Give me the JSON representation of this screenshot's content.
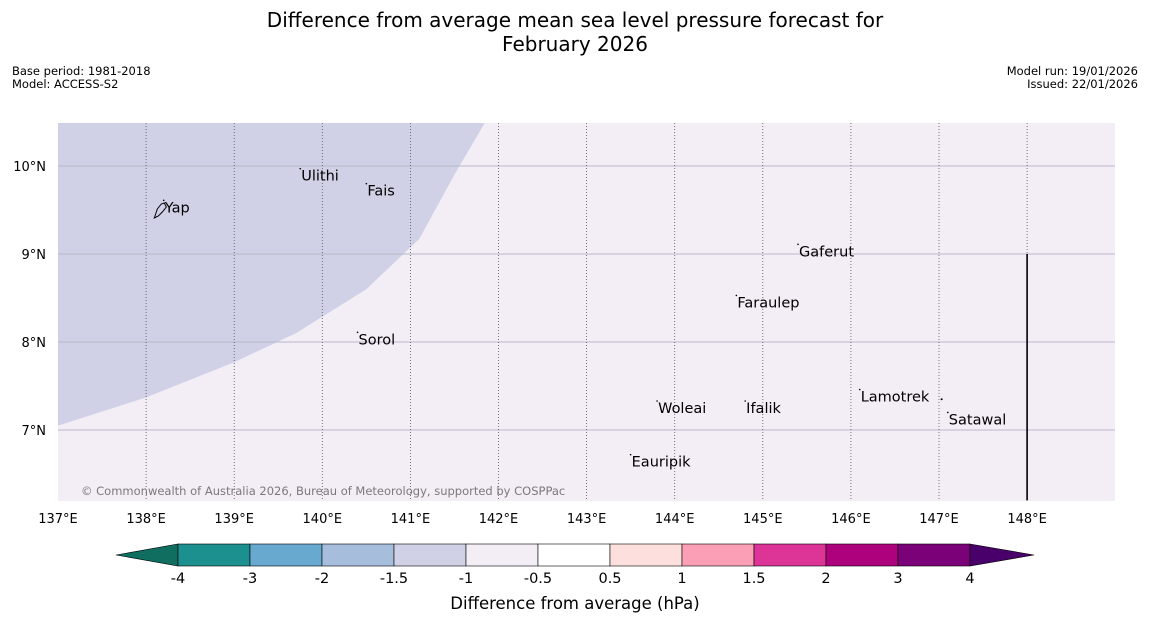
{
  "title": {
    "line1": "Difference from average mean sea level pressure forecast for",
    "line2": "February 2026"
  },
  "meta": {
    "base_period": "Base period: 1981-2018",
    "model": "Model: ACCESS-S2",
    "model_run": "Model run: 19/01/2026",
    "issued": "Issued: 22/01/2026"
  },
  "map": {
    "extent": {
      "lon_min": 137,
      "lon_max": 149,
      "lat_min": 6.2,
      "lat_max": 10.5
    },
    "lon_ticks": [
      {
        "value": 137,
        "label": "137°E"
      },
      {
        "value": 138,
        "label": "138°E"
      },
      {
        "value": 139,
        "label": "139°E"
      },
      {
        "value": 140,
        "label": "140°E"
      },
      {
        "value": 141,
        "label": "141°E"
      },
      {
        "value": 142,
        "label": "142°E"
      },
      {
        "value": 143,
        "label": "143°E"
      },
      {
        "value": 144,
        "label": "144°E"
      },
      {
        "value": 145,
        "label": "145°E"
      },
      {
        "value": 146,
        "label": "146°E"
      },
      {
        "value": 147,
        "label": "147°E"
      },
      {
        "value": 148,
        "label": "148°E"
      }
    ],
    "lat_ticks": [
      {
        "value": 10,
        "label": "10°N"
      },
      {
        "value": 9,
        "label": "9°N"
      },
      {
        "value": 8,
        "label": "8°N"
      },
      {
        "value": 7,
        "label": "7°N"
      }
    ],
    "regions": [
      {
        "name": "-1.5 to -1 hPa",
        "color": "#d0d1e6",
        "boundary": [
          [
            137,
            7.05
          ],
          [
            138,
            7.37
          ],
          [
            139,
            7.77
          ],
          [
            139.7,
            8.1
          ],
          [
            140.5,
            8.6
          ],
          [
            141.1,
            9.17
          ],
          [
            141.5,
            9.9
          ],
          [
            141.85,
            10.5
          ]
        ]
      },
      {
        "name": "-1 to -0.5 hPa",
        "color": "#f3edf6"
      }
    ],
    "places": [
      {
        "name": "Yap",
        "lon": 138.2,
        "lat": 9.53
      },
      {
        "name": "Ulithi",
        "lon": 139.75,
        "lat": 9.89
      },
      {
        "name": "Fais",
        "lon": 140.5,
        "lat": 9.72
      },
      {
        "name": "Gaferut",
        "lon": 145.4,
        "lat": 9.03
      },
      {
        "name": "Faraulep",
        "lon": 144.7,
        "lat": 8.45
      },
      {
        "name": "Sorol",
        "lon": 140.4,
        "lat": 8.03
      },
      {
        "name": "Lamotrek",
        "lon": 146.1,
        "lat": 7.38
      },
      {
        "name": "Woleai",
        "lon": 143.8,
        "lat": 7.25
      },
      {
        "name": "Ifalik",
        "lon": 144.8,
        "lat": 7.25
      },
      {
        "name": "Satawal",
        "lon": 147.1,
        "lat": 7.12
      },
      {
        "name": "Eauripik",
        "lon": 143.5,
        "lat": 6.64
      }
    ],
    "boundary_line": {
      "lon": 148,
      "lat_from": 6.2,
      "lat_to": 9
    }
  },
  "copyright": "© Commonwealth of Australia 2026, Bureau of Meteorology, supported by COSPPac",
  "colorbar": {
    "title": "Difference from average (hPa)",
    "colors": [
      "#0f6e5f",
      "#1c8f8f",
      "#67a9cf",
      "#a6bddb",
      "#d0d1e6",
      "#f3edf6",
      "#ffffff",
      "#fde0dd",
      "#fa9fb5",
      "#dd3497",
      "#ae017e",
      "#7a0177",
      "#49006a"
    ],
    "labels": [
      "-4",
      "-3",
      "-2",
      "-1.5",
      "-1",
      "-0.5",
      "0.5",
      "1",
      "1.5",
      "2",
      "3",
      "4"
    ]
  }
}
